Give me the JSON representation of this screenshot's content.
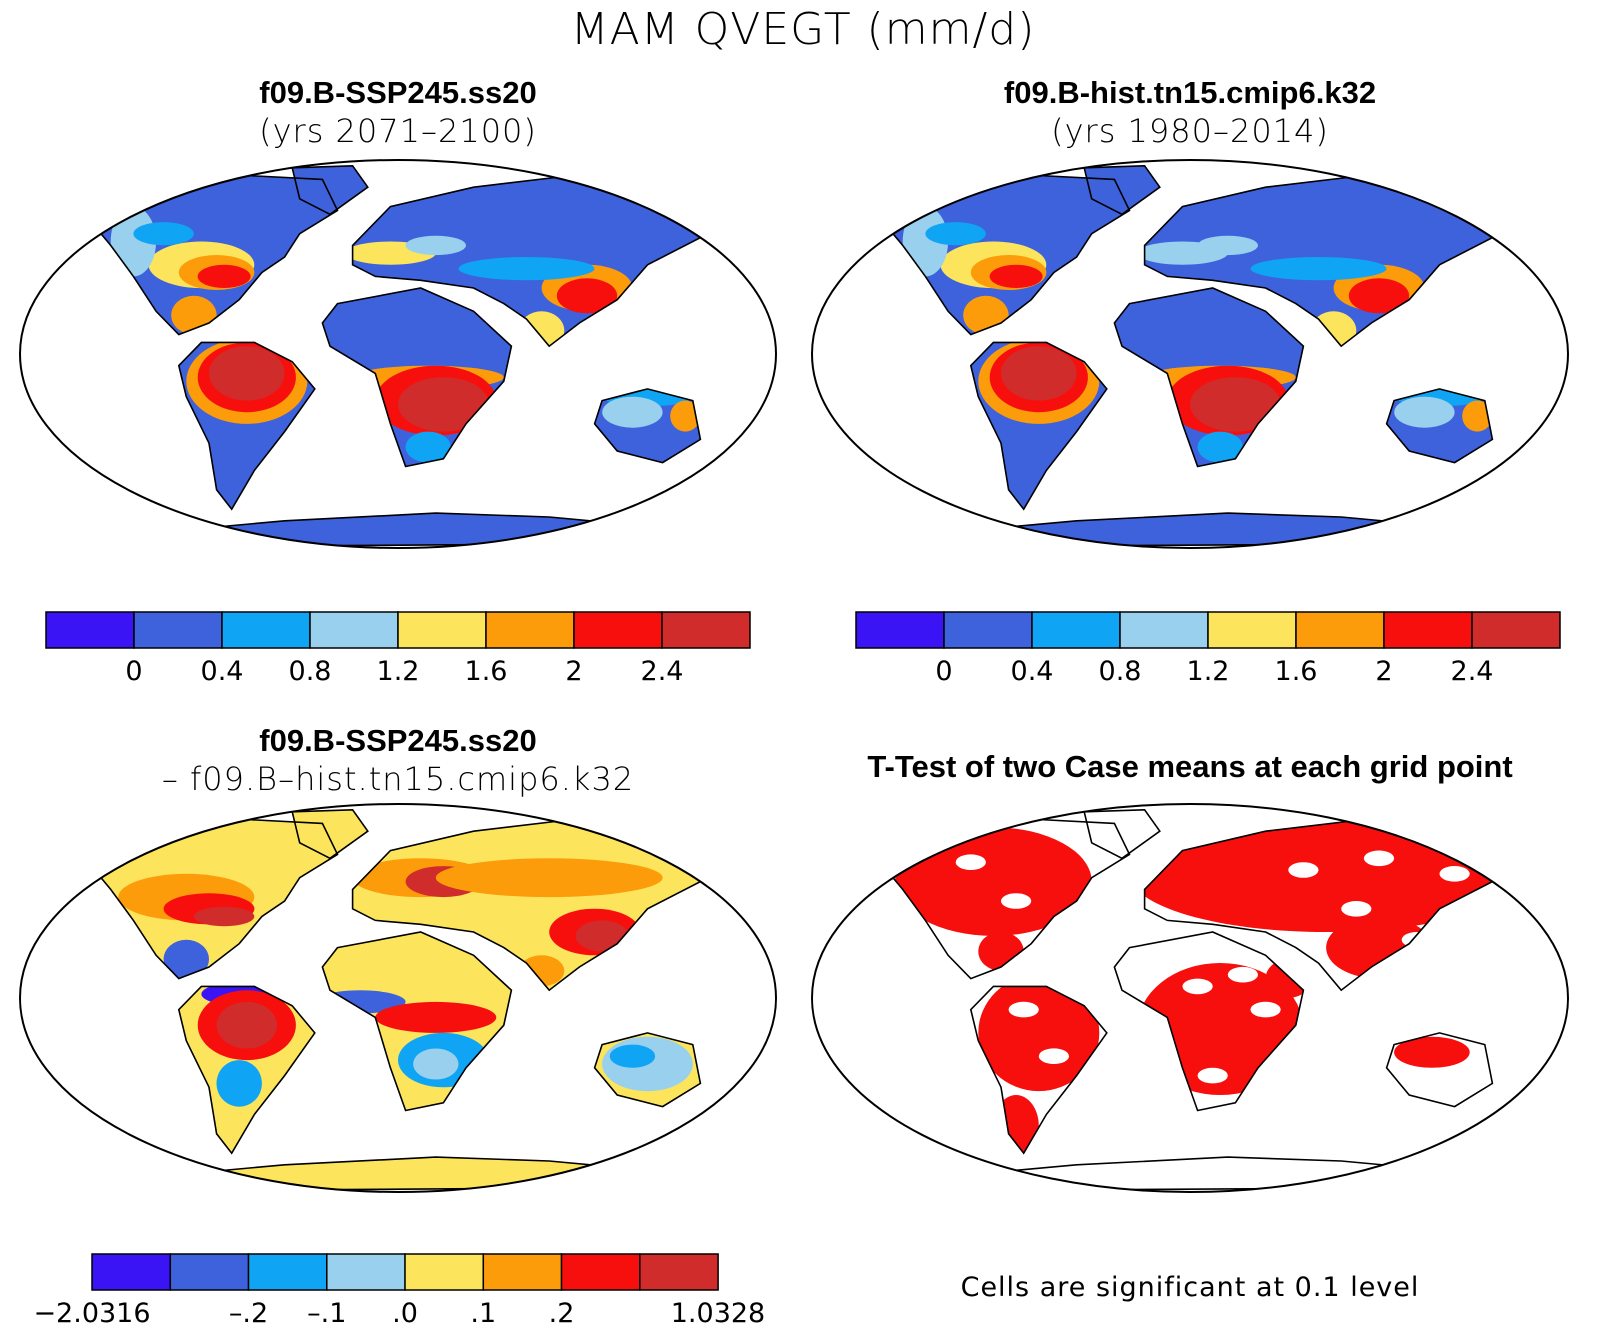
{
  "figure": {
    "title": "MAM QVEGT (mm/d)"
  },
  "panels": [
    {
      "id": "future",
      "title_line1": "f09.B-SSP245.ss20",
      "title_line2": "(yrs 2071–2100)",
      "fill_scheme": "abs"
    },
    {
      "id": "historical",
      "title_line1": "f09.B-hist.tn15.cmip6.k32",
      "title_line2": "(yrs 1980–2014)",
      "fill_scheme": "abs"
    },
    {
      "id": "difference",
      "title_line1": "f09.B-SSP245.ss20",
      "title_line2": "– f09.B–hist.tn15.cmip6.k32",
      "fill_scheme": "diff"
    },
    {
      "id": "ttest",
      "title_line1": "T-Test of two Case means at each grid point",
      "title_line2": "",
      "fill_scheme": "sig",
      "note": "Cells are significant at 0.1 level"
    }
  ],
  "colorbars": {
    "absolute": {
      "colors": [
        "#3a14f4",
        "#3e62dc",
        "#10a4f4",
        "#98d0ee",
        "#fce55c",
        "#fc9c0a",
        "#f70f0e",
        "#d02c2c"
      ],
      "tick_labels": [
        "0",
        "0.4",
        "0.8",
        "1.2",
        "1.6",
        "2",
        "2.4"
      ]
    },
    "difference": {
      "colors": [
        "#3a14f4",
        "#3e62dc",
        "#10a4f4",
        "#98d0ee",
        "#fce55c",
        "#fc9c0a",
        "#f70f0e",
        "#d02c2c"
      ],
      "tick_labels": [
        "−2.0316",
        "",
        "–.2",
        "–.1",
        ".0",
        ".1",
        ".2",
        "",
        "1.0328"
      ]
    }
  },
  "map_colors": {
    "ocean": "#ffffff",
    "significant": "#f70f0e",
    "coast": "#000000"
  }
}
